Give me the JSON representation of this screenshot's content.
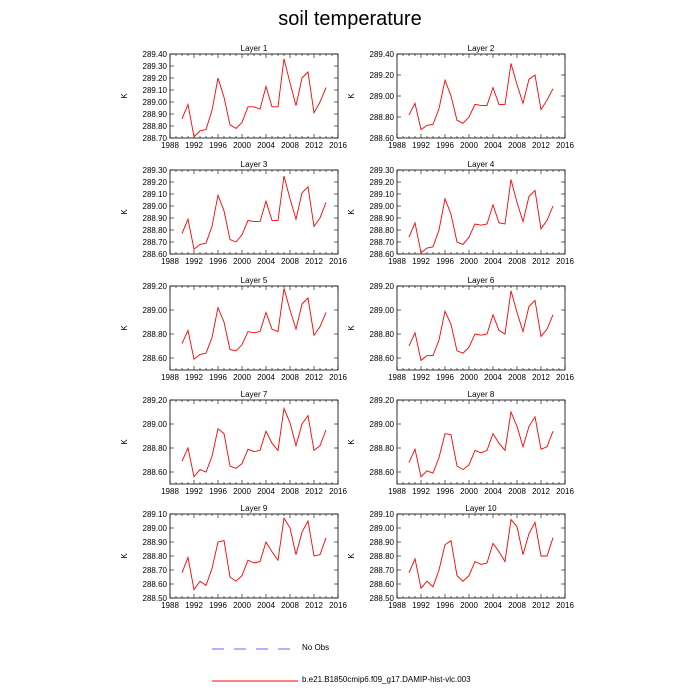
{
  "title": "soil temperature",
  "colors": {
    "model": "#ff0000",
    "obs": "#6666ff",
    "axis": "#000000"
  },
  "legend": {
    "obs_label": "No Obs",
    "model_label": "b.e21.B1850cmip6.f09_g17.DAMIP-hist-vlc.003"
  },
  "chart_data": [
    {
      "type": "line",
      "title": "Layer 1",
      "ylabel": "K",
      "xlim": [
        1988,
        2016
      ],
      "xticks": [
        1988,
        1992,
        1996,
        2000,
        2004,
        2008,
        2012,
        2016
      ],
      "yticks": [
        "288.70",
        "288.80",
        "288.90",
        "289.00",
        "289.10",
        "289.20",
        "289.30",
        "289.40"
      ],
      "ylim": [
        288.7,
        289.4
      ],
      "x": [
        1990,
        1991,
        1992,
        1993,
        1994,
        1995,
        1996,
        1997,
        1998,
        1999,
        2000,
        2001,
        2002,
        2003,
        2004,
        2005,
        2006,
        2007,
        2008,
        2009,
        2010,
        2011,
        2012,
        2013,
        2014
      ],
      "series": [
        {
          "name": "b.e21.B1850cmip6.f09_g17.DAMIP-hist-vlc.003",
          "values": [
            288.86,
            288.98,
            288.71,
            288.76,
            288.77,
            288.93,
            289.2,
            289.04,
            288.81,
            288.78,
            288.83,
            288.96,
            288.96,
            288.94,
            289.13,
            288.96,
            288.96,
            289.36,
            289.16,
            288.97,
            289.2,
            289.25,
            288.91,
            289.0,
            289.12
          ]
        }
      ]
    },
    {
      "type": "line",
      "title": "Layer 2",
      "ylabel": "K",
      "xlim": [
        1988,
        2016
      ],
      "xticks": [
        1988,
        1992,
        1996,
        2000,
        2004,
        2008,
        2012,
        2016
      ],
      "yticks": [
        "288.60",
        "288.80",
        "289.00",
        "289.20",
        "289.40"
      ],
      "ylim": [
        288.6,
        289.4
      ],
      "x": [
        1990,
        1991,
        1992,
        1993,
        1994,
        1995,
        1996,
        1997,
        1998,
        1999,
        2000,
        2001,
        2002,
        2003,
        2004,
        2005,
        2006,
        2007,
        2008,
        2009,
        2010,
        2011,
        2012,
        2013,
        2014
      ],
      "series": [
        {
          "name": "b.e21.B1850cmip6.f09_g17.DAMIP-hist-vlc.003",
          "values": [
            288.82,
            288.93,
            288.68,
            288.72,
            288.73,
            288.88,
            289.15,
            289.0,
            288.77,
            288.74,
            288.8,
            288.92,
            288.91,
            288.91,
            289.08,
            288.92,
            288.92,
            289.31,
            289.11,
            288.93,
            289.16,
            289.2,
            288.87,
            288.96,
            289.07
          ]
        }
      ]
    },
    {
      "type": "line",
      "title": "Layer 3",
      "ylabel": "K",
      "xlim": [
        1988,
        2016
      ],
      "xticks": [
        1988,
        1992,
        1996,
        2000,
        2004,
        2008,
        2012,
        2016
      ],
      "yticks": [
        "288.60",
        "288.70",
        "288.80",
        "288.90",
        "289.00",
        "289.10",
        "289.20",
        "289.30"
      ],
      "ylim": [
        288.6,
        289.3
      ],
      "x": [
        1990,
        1991,
        1992,
        1993,
        1994,
        1995,
        1996,
        1997,
        1998,
        1999,
        2000,
        2001,
        2002,
        2003,
        2004,
        2005,
        2006,
        2007,
        2008,
        2009,
        2010,
        2011,
        2012,
        2013,
        2014
      ],
      "series": [
        {
          "name": "b.e21.B1850cmip6.f09_g17.DAMIP-hist-vlc.003",
          "values": [
            288.77,
            288.89,
            288.64,
            288.68,
            288.69,
            288.83,
            289.09,
            288.96,
            288.72,
            288.7,
            288.76,
            288.88,
            288.87,
            288.87,
            289.04,
            288.88,
            288.88,
            289.25,
            289.06,
            288.89,
            289.11,
            289.16,
            288.83,
            288.9,
            289.03
          ]
        }
      ]
    },
    {
      "type": "line",
      "title": "Layer 4",
      "ylabel": "K",
      "xlim": [
        1988,
        2016
      ],
      "xticks": [
        1988,
        1992,
        1996,
        2000,
        2004,
        2008,
        2012,
        2016
      ],
      "yticks": [
        "288.60",
        "288.70",
        "288.80",
        "288.90",
        "289.00",
        "289.10",
        "289.20",
        "289.30"
      ],
      "ylim": [
        288.6,
        289.3
      ],
      "x": [
        1990,
        1991,
        1992,
        1993,
        1994,
        1995,
        1996,
        1997,
        1998,
        1999,
        2000,
        2001,
        2002,
        2003,
        2004,
        2005,
        2006,
        2007,
        2008,
        2009,
        2010,
        2011,
        2012,
        2013,
        2014
      ],
      "series": [
        {
          "name": "b.e21.B1850cmip6.f09_g17.DAMIP-hist-vlc.003",
          "values": [
            288.74,
            288.86,
            288.61,
            288.65,
            288.66,
            288.8,
            289.06,
            288.93,
            288.7,
            288.68,
            288.74,
            288.85,
            288.84,
            288.85,
            289.01,
            288.86,
            288.85,
            289.22,
            289.03,
            288.87,
            289.08,
            289.13,
            288.81,
            288.88,
            289.0
          ]
        }
      ]
    },
    {
      "type": "line",
      "title": "Layer 5",
      "ylabel": "K",
      "xlim": [
        1988,
        2016
      ],
      "xticks": [
        1988,
        1992,
        1996,
        2000,
        2004,
        2008,
        2012,
        2016
      ],
      "yticks": [
        "288.60",
        "288.80",
        "289.00",
        "289.20"
      ],
      "ylim": [
        288.5,
        289.2
      ],
      "x": [
        1990,
        1991,
        1992,
        1993,
        1994,
        1995,
        1996,
        1997,
        1998,
        1999,
        2000,
        2001,
        2002,
        2003,
        2004,
        2005,
        2006,
        2007,
        2008,
        2009,
        2010,
        2011,
        2012,
        2013,
        2014
      ],
      "series": [
        {
          "name": "b.e21.B1850cmip6.f09_g17.DAMIP-hist-vlc.003",
          "values": [
            288.72,
            288.83,
            288.59,
            288.63,
            288.64,
            288.77,
            289.02,
            288.9,
            288.67,
            288.66,
            288.71,
            288.82,
            288.81,
            288.82,
            288.98,
            288.84,
            288.82,
            289.18,
            289.0,
            288.84,
            289.05,
            289.1,
            288.79,
            288.86,
            288.98
          ]
        }
      ]
    },
    {
      "type": "line",
      "title": "Layer 6",
      "ylabel": "K",
      "xlim": [
        1988,
        2016
      ],
      "xticks": [
        1988,
        1992,
        1996,
        2000,
        2004,
        2008,
        2012,
        2016
      ],
      "yticks": [
        "288.60",
        "288.80",
        "289.00",
        "289.20"
      ],
      "ylim": [
        288.5,
        289.2
      ],
      "x": [
        1990,
        1991,
        1992,
        1993,
        1994,
        1995,
        1996,
        1997,
        1998,
        1999,
        2000,
        2001,
        2002,
        2003,
        2004,
        2005,
        2006,
        2007,
        2008,
        2009,
        2010,
        2011,
        2012,
        2013,
        2014
      ],
      "series": [
        {
          "name": "b.e21.B1850cmip6.f09_g17.DAMIP-hist-vlc.003",
          "values": [
            288.7,
            288.81,
            288.58,
            288.62,
            288.62,
            288.75,
            288.99,
            288.88,
            288.66,
            288.64,
            288.69,
            288.8,
            288.79,
            288.8,
            288.96,
            288.83,
            288.8,
            289.16,
            288.98,
            288.82,
            289.03,
            289.08,
            288.78,
            288.84,
            288.96
          ]
        }
      ]
    },
    {
      "type": "line",
      "title": "Layer 7",
      "ylabel": "K",
      "xlim": [
        1988,
        2016
      ],
      "xticks": [
        1988,
        1992,
        1996,
        2000,
        2004,
        2008,
        2012,
        2016
      ],
      "yticks": [
        "288.60",
        "288.80",
        "289.00",
        "289.20"
      ],
      "ylim": [
        288.5,
        289.2
      ],
      "x": [
        1990,
        1991,
        1992,
        1993,
        1994,
        1995,
        1996,
        1997,
        1998,
        1999,
        2000,
        2001,
        2002,
        2003,
        2004,
        2005,
        2006,
        2007,
        2008,
        2009,
        2010,
        2011,
        2012,
        2013,
        2014
      ],
      "series": [
        {
          "name": "b.e21.B1850cmip6.f09_g17.DAMIP-hist-vlc.003",
          "values": [
            288.69,
            288.8,
            288.56,
            288.62,
            288.6,
            288.73,
            288.96,
            288.92,
            288.65,
            288.63,
            288.67,
            288.79,
            288.77,
            288.78,
            288.94,
            288.84,
            288.78,
            289.13,
            289.01,
            288.82,
            289.0,
            289.07,
            288.78,
            288.82,
            288.95
          ]
        }
      ]
    },
    {
      "type": "line",
      "title": "Layer 8",
      "ylabel": "K",
      "xlim": [
        1988,
        2016
      ],
      "xticks": [
        1988,
        1992,
        1996,
        2000,
        2004,
        2008,
        2012,
        2016
      ],
      "yticks": [
        "288.60",
        "288.80",
        "289.00",
        "289.20"
      ],
      "ylim": [
        288.5,
        289.2
      ],
      "x": [
        1990,
        1991,
        1992,
        1993,
        1994,
        1995,
        1996,
        1997,
        1998,
        1999,
        2000,
        2001,
        2002,
        2003,
        2004,
        2005,
        2006,
        2007,
        2008,
        2009,
        2010,
        2011,
        2012,
        2013,
        2014
      ],
      "series": [
        {
          "name": "b.e21.B1850cmip6.f09_g17.DAMIP-hist-vlc.003",
          "values": [
            288.68,
            288.79,
            288.56,
            288.61,
            288.59,
            288.72,
            288.92,
            288.91,
            288.65,
            288.62,
            288.66,
            288.78,
            288.76,
            288.78,
            288.92,
            288.84,
            288.78,
            289.1,
            288.98,
            288.81,
            288.98,
            289.06,
            288.79,
            288.81,
            288.94
          ]
        }
      ]
    },
    {
      "type": "line",
      "title": "Layer 9",
      "ylabel": "K",
      "xlim": [
        1988,
        2016
      ],
      "xticks": [
        1988,
        1992,
        1996,
        2000,
        2004,
        2008,
        2012,
        2016
      ],
      "yticks": [
        "288.50",
        "288.60",
        "288.70",
        "288.80",
        "288.90",
        "289.00",
        "289.10"
      ],
      "ylim": [
        288.5,
        289.1
      ],
      "x": [
        1990,
        1991,
        1992,
        1993,
        1994,
        1995,
        1996,
        1997,
        1998,
        1999,
        2000,
        2001,
        2002,
        2003,
        2004,
        2005,
        2006,
        2007,
        2008,
        2009,
        2010,
        2011,
        2012,
        2013,
        2014
      ],
      "series": [
        {
          "name": "b.e21.B1850cmip6.f09_g17.DAMIP-hist-vlc.003",
          "values": [
            288.68,
            288.79,
            288.56,
            288.62,
            288.59,
            288.71,
            288.9,
            288.91,
            288.65,
            288.62,
            288.66,
            288.77,
            288.75,
            288.76,
            288.9,
            288.83,
            288.77,
            289.07,
            289.0,
            288.81,
            288.97,
            289.05,
            288.8,
            288.81,
            288.93
          ]
        }
      ]
    },
    {
      "type": "line",
      "title": "Layer 10",
      "ylabel": "K",
      "xlim": [
        1988,
        2016
      ],
      "xticks": [
        1988,
        1992,
        1996,
        2000,
        2004,
        2008,
        2012,
        2016
      ],
      "yticks": [
        "288.50",
        "288.60",
        "288.70",
        "288.80",
        "288.90",
        "289.00",
        "289.10"
      ],
      "ylim": [
        288.5,
        289.1
      ],
      "x": [
        1990,
        1991,
        1992,
        1993,
        1994,
        1995,
        1996,
        1997,
        1998,
        1999,
        2000,
        2001,
        2002,
        2003,
        2004,
        2005,
        2006,
        2007,
        2008,
        2009,
        2010,
        2011,
        2012,
        2013,
        2014
      ],
      "series": [
        {
          "name": "b.e21.B1850cmip6.f09_g17.DAMIP-hist-vlc.003",
          "values": [
            288.68,
            288.78,
            288.57,
            288.62,
            288.58,
            288.7,
            288.88,
            288.91,
            288.66,
            288.62,
            288.66,
            288.76,
            288.74,
            288.75,
            288.89,
            288.83,
            288.76,
            289.06,
            289.01,
            288.81,
            288.96,
            289.04,
            288.8,
            288.8,
            288.93
          ]
        }
      ]
    }
  ]
}
